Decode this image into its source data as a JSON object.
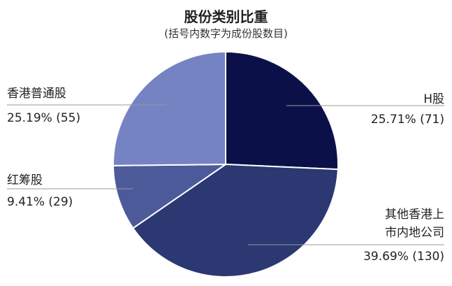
{
  "chart_data": {
    "type": "pie",
    "title": "股份类别比重",
    "subtitle": "(括号内数字为成份股数目)",
    "slices": [
      {
        "label": "H股",
        "value": 25.71,
        "count": 71,
        "value_text": "25.71% (71)",
        "color": "#0b1148"
      },
      {
        "label": "其他香港上市内地公司",
        "label_lines": [
          "其他香港上",
          "市内地公司"
        ],
        "value": 39.69,
        "count": 130,
        "value_text": "39.69% (130)",
        "color": "#2b3872"
      },
      {
        "label": "红筹股",
        "value": 9.41,
        "count": 29,
        "value_text": "9.41% (29)",
        "color": "#4d5a9a"
      },
      {
        "label": "香港普通股",
        "value": 25.19,
        "count": 55,
        "value_text": "25.19% (55)",
        "color": "#7683c2"
      }
    ]
  }
}
